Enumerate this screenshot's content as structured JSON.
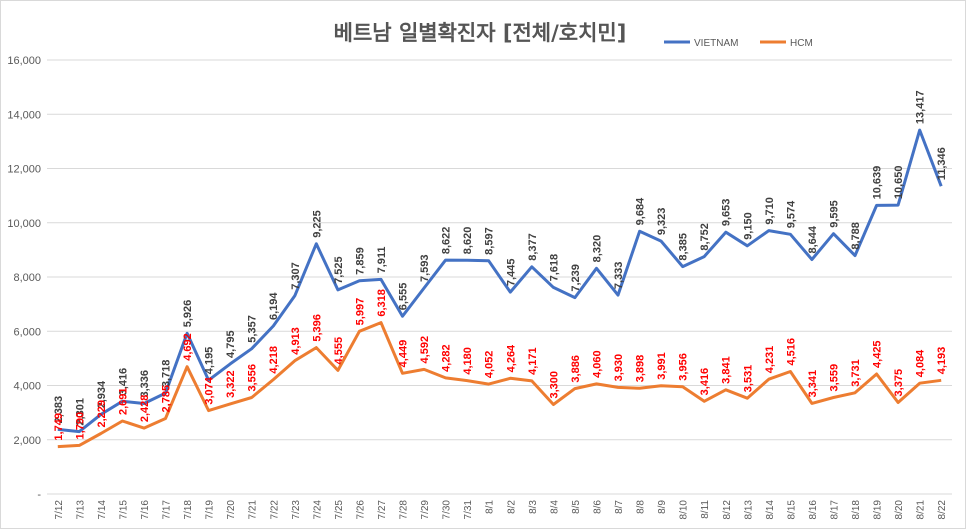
{
  "chart_data": {
    "type": "line",
    "title": "베트남  일별확진자 [전체/호치민]",
    "xlabel": "",
    "ylabel": "",
    "ylim": [
      0,
      16000
    ],
    "yticks": [
      "-",
      "2,000",
      "4,000",
      "6,000",
      "8,000",
      "10,000",
      "12,000",
      "14,000",
      "16,000"
    ],
    "grid": true,
    "legend_position": "top-right",
    "categories": [
      "7/12",
      "7/13",
      "7/14",
      "7/15",
      "7/16",
      "7/17",
      "7/18",
      "7/19",
      "7/20",
      "7/21",
      "7/22",
      "7/23",
      "7/24",
      "7/25",
      "7/26",
      "7/27",
      "7/28",
      "7/29",
      "7/30",
      "7/31",
      "8/1",
      "8/2",
      "8/3",
      "8/4",
      "8/5",
      "8/6",
      "8/7",
      "8/8",
      "8/9",
      "8/10",
      "8/11",
      "8/12",
      "8/13",
      "8/14",
      "8/15",
      "8/16",
      "8/17",
      "8/18",
      "8/19",
      "8/20",
      "8/21",
      "8/22"
    ],
    "series": [
      {
        "name": "VIETNAM",
        "color": "#4472c4",
        "values": [
          2383,
          2301,
          2934,
          3416,
          3336,
          3718,
          5926,
          4195,
          4795,
          5357,
          6194,
          7307,
          9225,
          7525,
          7859,
          7911,
          6555,
          7593,
          8622,
          8620,
          8597,
          7445,
          8377,
          7618,
          7239,
          8320,
          7333,
          9684,
          9323,
          8385,
          8752,
          9653,
          9150,
          9710,
          9574,
          8644,
          9595,
          8788,
          10639,
          10650,
          13417,
          11346
        ],
        "labels": [
          "2,383",
          "2,301",
          "2,934",
          "3,416",
          "3,336",
          "3,718",
          "5,926",
          "4,195",
          "4,795",
          "5,357",
          "6,194",
          "7,307",
          "9,225",
          "7,525",
          "7,859",
          "7,911",
          "6,555",
          "7,593",
          "8,622",
          "8,620",
          "8,597",
          "7,445",
          "8,377",
          "7,618",
          "7,239",
          "8,320",
          "7,333",
          "9,684",
          "9,323",
          "8,385",
          "8,752",
          "9,653",
          "9,150",
          "9,710",
          "9,574",
          "8,644",
          "9,595",
          "8,788",
          "10,639",
          "10,650",
          "13,417",
          "11,346"
        ]
      },
      {
        "name": "HCM",
        "color": "#ed7d31",
        "values": [
          1749,
          1790,
          2229,
          2691,
          2428,
          2785,
          4692,
          3074,
          3322,
          3556,
          4218,
          4913,
          5396,
          4555,
          5997,
          6318,
          4449,
          4592,
          4282,
          4180,
          4052,
          4264,
          4171,
          3300,
          3886,
          4060,
          3930,
          3898,
          3991,
          3956,
          3416,
          3841,
          3531,
          4231,
          4516,
          3341,
          3559,
          3731,
          4425,
          3375,
          4084,
          4193
        ],
        "labels": [
          "1,749",
          "1,790",
          "2,229",
          "2,691",
          "2,428",
          "2,785",
          "4,692",
          "3,074",
          "3,322",
          "3,556",
          "4,218",
          "4,913",
          "5,396",
          "4,555",
          "5,997",
          "6,318",
          "4,449",
          "4,592",
          "4,282",
          "4,180",
          "4,052",
          "4,264",
          "4,171",
          "3,300",
          "3,886",
          "4,060",
          "3,930",
          "3,898",
          "3,991",
          "3,956",
          "3,416",
          "3,841",
          "3,531",
          "4,231",
          "4,516",
          "3,341",
          "3,559",
          "3,731",
          "4,425",
          "3,375",
          "4,084",
          "4,193"
        ]
      }
    ]
  }
}
